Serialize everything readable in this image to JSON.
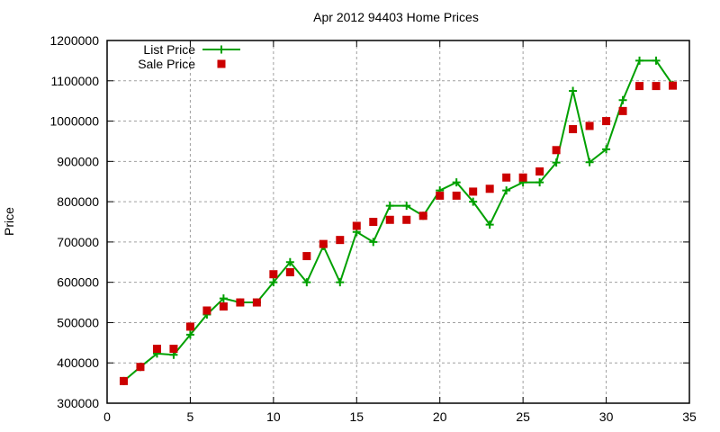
{
  "chart_data": {
    "type": "line",
    "title": "Apr 2012 94403 Home Prices",
    "xlabel": "",
    "ylabel": "Price",
    "xlim": [
      0,
      35
    ],
    "ylim": [
      300000,
      1200000
    ],
    "xticks": [
      0,
      5,
      10,
      15,
      20,
      25,
      30,
      35
    ],
    "yticks": [
      300000,
      400000,
      500000,
      600000,
      700000,
      800000,
      900000,
      1000000,
      1100000,
      1200000
    ],
    "grid": true,
    "legend_position": "top-left",
    "x": [
      1,
      2,
      3,
      4,
      5,
      6,
      7,
      8,
      9,
      10,
      11,
      12,
      13,
      14,
      15,
      16,
      17,
      18,
      19,
      20,
      21,
      22,
      23,
      24,
      25,
      26,
      27,
      28,
      29,
      30,
      31,
      32,
      33,
      34
    ],
    "series": [
      {
        "name": "List Price",
        "style": "linespoints",
        "marker": "plus",
        "color": "#00a000",
        "values": [
          355000,
          390000,
          423000,
          420000,
          470000,
          520000,
          560000,
          550000,
          550000,
          600000,
          650000,
          600000,
          690000,
          600000,
          725000,
          700000,
          790000,
          790000,
          765000,
          828000,
          848000,
          800000,
          743000,
          828000,
          848000,
          848000,
          897000,
          1075000,
          898000,
          930000,
          1052000,
          1150000,
          1150000,
          1090000
        ]
      },
      {
        "name": "Sale Price",
        "style": "points",
        "marker": "square",
        "color": "#cc0000",
        "values": [
          355000,
          390000,
          435000,
          435000,
          490000,
          530000,
          540000,
          550000,
          550000,
          620000,
          625000,
          665000,
          695000,
          705000,
          740000,
          750000,
          755000,
          755000,
          765000,
          815000,
          815000,
          825000,
          832000,
          860000,
          860000,
          875000,
          928000,
          980000,
          988000,
          1000000,
          1025000,
          1087000,
          1087000,
          1088000
        ]
      }
    ]
  }
}
